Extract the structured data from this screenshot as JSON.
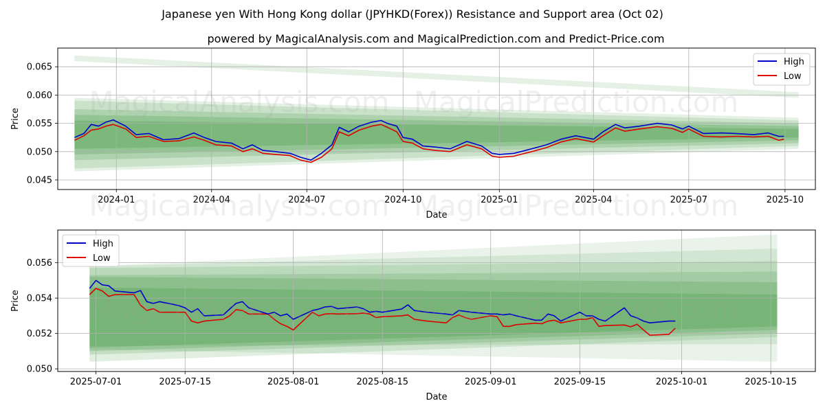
{
  "title": "Japanese yen With Hong Kong dollar (JPYHKD(Forex)) Resistance and Support area (Oct 02)",
  "subtitle": "powered by MagicalAnalysis.com and MagicalPrediction.com and Predict-Price.com",
  "watermarks": [
    "MagicalAnalysis.com",
    "MagicalPrediction.com"
  ],
  "colors": {
    "high": "#0000cc",
    "low": "#dd0000",
    "band": "#2e8b2e"
  },
  "chart_data": [
    {
      "type": "line",
      "xlabel": "Date",
      "ylabel": "Price",
      "legend_position": "top-right",
      "grid": true,
      "xlim": [
        "2023-11-06",
        "2025-10-30"
      ],
      "ylim": [
        0.0433,
        0.0683
      ],
      "x_ticks": [
        "2024-01",
        "2024-04",
        "2024-07",
        "2024-10",
        "2025-01",
        "2025-04",
        "2025-07",
        "2025-10"
      ],
      "x_tick_dates": [
        "2024-01-01",
        "2024-04-01",
        "2024-07-01",
        "2024-10-01",
        "2025-01-01",
        "2025-04-01",
        "2025-07-01",
        "2025-10-01"
      ],
      "y_ticks": [
        "0.045",
        "0.050",
        "0.055",
        "0.060",
        "0.065"
      ],
      "y_tick_values": [
        0.045,
        0.05,
        0.055,
        0.06,
        0.065
      ],
      "bands": [
        {
          "x": [
            "2023-11-22",
            "2025-10-14"
          ],
          "upper": [
            0.067,
            0.0605
          ],
          "lower": [
            0.066,
            0.0595
          ],
          "opacity": 0.12
        },
        {
          "x": [
            "2023-11-22",
            "2025-10-14"
          ],
          "upper": [
            0.0595,
            0.056
          ],
          "lower": [
            0.0465,
            0.0505
          ],
          "opacity": 0.12
        },
        {
          "x": [
            "2023-11-22",
            "2025-10-14"
          ],
          "upper": [
            0.059,
            0.0555
          ],
          "lower": [
            0.047,
            0.051
          ],
          "opacity": 0.15
        },
        {
          "x": [
            "2023-11-22",
            "2025-10-14"
          ],
          "upper": [
            0.0575,
            0.055
          ],
          "lower": [
            0.0485,
            0.0515
          ],
          "opacity": 0.18
        },
        {
          "x": [
            "2023-11-22",
            "2025-10-14"
          ],
          "upper": [
            0.0565,
            0.0545
          ],
          "lower": [
            0.0495,
            0.052
          ],
          "opacity": 0.2
        },
        {
          "x": [
            "2023-11-22",
            "2025-10-14"
          ],
          "upper": [
            0.0555,
            0.054
          ],
          "lower": [
            0.0505,
            0.0525
          ],
          "opacity": 0.22
        }
      ],
      "series": [
        {
          "name": "High",
          "color": "#0000cc",
          "x": [
            "2023-11-22",
            "2023-12-01",
            "2023-12-08",
            "2023-12-15",
            "2023-12-22",
            "2023-12-29",
            "2024-01-10",
            "2024-01-20",
            "2024-02-01",
            "2024-02-15",
            "2024-03-01",
            "2024-03-15",
            "2024-03-25",
            "2024-04-05",
            "2024-04-20",
            "2024-05-01",
            "2024-05-10",
            "2024-05-20",
            "2024-06-01",
            "2024-06-15",
            "2024-06-25",
            "2024-07-05",
            "2024-07-15",
            "2024-07-25",
            "2024-08-01",
            "2024-08-10",
            "2024-08-20",
            "2024-09-01",
            "2024-09-10",
            "2024-09-16",
            "2024-09-25",
            "2024-10-01",
            "2024-10-10",
            "2024-10-20",
            "2024-11-01",
            "2024-11-15",
            "2024-12-01",
            "2024-12-15",
            "2024-12-25",
            "2025-01-01",
            "2025-01-15",
            "2025-02-01",
            "2025-02-15",
            "2025-03-01",
            "2025-03-15",
            "2025-04-01",
            "2025-04-10",
            "2025-04-22",
            "2025-05-01",
            "2025-05-15",
            "2025-06-01",
            "2025-06-15",
            "2025-06-25",
            "2025-07-01",
            "2025-07-15",
            "2025-08-01",
            "2025-08-15",
            "2025-09-01",
            "2025-09-15",
            "2025-09-25",
            "2025-09-30"
          ],
          "y": [
            0.0525,
            0.0532,
            0.0548,
            0.0545,
            0.0552,
            0.0556,
            0.0545,
            0.053,
            0.0532,
            0.0521,
            0.0523,
            0.0533,
            0.0525,
            0.0518,
            0.0515,
            0.0505,
            0.0512,
            0.0502,
            0.05,
            0.0497,
            0.049,
            0.0485,
            0.0497,
            0.0512,
            0.0543,
            0.0535,
            0.0545,
            0.0552,
            0.0555,
            0.055,
            0.0545,
            0.0525,
            0.0522,
            0.051,
            0.0508,
            0.0505,
            0.0518,
            0.051,
            0.0497,
            0.0495,
            0.0497,
            0.0505,
            0.0512,
            0.0522,
            0.0528,
            0.0522,
            0.0535,
            0.0548,
            0.0542,
            0.0545,
            0.055,
            0.0547,
            0.054,
            0.0545,
            0.0532,
            0.0533,
            0.0532,
            0.053,
            0.0533,
            0.0527,
            0.0527
          ]
        },
        {
          "name": "Low",
          "color": "#dd0000",
          "x": [
            "2023-11-22",
            "2023-12-01",
            "2023-12-08",
            "2023-12-15",
            "2023-12-22",
            "2023-12-29",
            "2024-01-10",
            "2024-01-20",
            "2024-02-01",
            "2024-02-15",
            "2024-03-01",
            "2024-03-15",
            "2024-03-25",
            "2024-04-05",
            "2024-04-20",
            "2024-05-01",
            "2024-05-10",
            "2024-05-20",
            "2024-06-01",
            "2024-06-15",
            "2024-06-25",
            "2024-07-05",
            "2024-07-15",
            "2024-07-25",
            "2024-08-01",
            "2024-08-10",
            "2024-08-20",
            "2024-09-01",
            "2024-09-10",
            "2024-09-16",
            "2024-09-25",
            "2024-10-01",
            "2024-10-10",
            "2024-10-20",
            "2024-11-01",
            "2024-11-15",
            "2024-12-01",
            "2024-12-15",
            "2024-12-25",
            "2025-01-01",
            "2025-01-15",
            "2025-02-01",
            "2025-02-15",
            "2025-03-01",
            "2025-03-15",
            "2025-04-01",
            "2025-04-10",
            "2025-04-22",
            "2025-05-01",
            "2025-05-15",
            "2025-06-01",
            "2025-06-15",
            "2025-06-25",
            "2025-07-01",
            "2025-07-15",
            "2025-08-01",
            "2025-08-15",
            "2025-09-01",
            "2025-09-15",
            "2025-09-25",
            "2025-09-30"
          ],
          "y": [
            0.052,
            0.0528,
            0.0538,
            0.054,
            0.0545,
            0.0548,
            0.054,
            0.0525,
            0.0527,
            0.0518,
            0.0519,
            0.0526,
            0.052,
            0.0512,
            0.051,
            0.05,
            0.0505,
            0.0497,
            0.0495,
            0.0493,
            0.0485,
            0.0481,
            0.049,
            0.0505,
            0.0535,
            0.0528,
            0.0538,
            0.0545,
            0.0548,
            0.0543,
            0.0535,
            0.0518,
            0.0515,
            0.0505,
            0.0502,
            0.05,
            0.0512,
            0.0505,
            0.0492,
            0.049,
            0.0492,
            0.05,
            0.0507,
            0.0517,
            0.0523,
            0.0517,
            0.0528,
            0.0542,
            0.0536,
            0.054,
            0.0544,
            0.0541,
            0.0534,
            0.054,
            0.0527,
            0.0526,
            0.0527,
            0.0526,
            0.0527,
            0.052,
            0.0522
          ]
        }
      ]
    },
    {
      "type": "line",
      "xlabel": "Date",
      "ylabel": "Price",
      "legend_position": "top-left",
      "grid": true,
      "xlim": [
        "2025-06-25",
        "2025-10-22"
      ],
      "ylim": [
        0.04985,
        0.05785
      ],
      "x_ticks": [
        "2025-07-01",
        "2025-07-15",
        "2025-08-01",
        "2025-08-15",
        "2025-09-01",
        "2025-09-15",
        "2025-10-01",
        "2025-10-15"
      ],
      "x_tick_dates": [
        "2025-07-01",
        "2025-07-15",
        "2025-08-01",
        "2025-08-15",
        "2025-09-01",
        "2025-09-15",
        "2025-10-01",
        "2025-10-15"
      ],
      "y_ticks": [
        "0.050",
        "0.052",
        "0.054",
        "0.056"
      ],
      "y_tick_values": [
        0.05,
        0.052,
        0.054,
        0.056
      ],
      "bands": [
        {
          "x": [
            "2025-06-30",
            "2025-10-16"
          ],
          "upper": [
            0.0558,
            0.0576
          ],
          "lower": [
            0.0511,
            0.0504
          ],
          "opacity": 0.1
        },
        {
          "x": [
            "2025-06-30",
            "2025-10-16"
          ],
          "upper": [
            0.0558,
            0.0568
          ],
          "lower": [
            0.0513,
            0.0514
          ],
          "opacity": 0.12
        },
        {
          "x": [
            "2025-06-30",
            "2025-10-16"
          ],
          "upper": [
            0.0557,
            0.0561
          ],
          "lower": [
            0.0504,
            0.0518
          ],
          "opacity": 0.14
        },
        {
          "x": [
            "2025-06-30",
            "2025-10-16"
          ],
          "upper": [
            0.0553,
            0.0555
          ],
          "lower": [
            0.0508,
            0.052
          ],
          "opacity": 0.16
        },
        {
          "x": [
            "2025-06-30",
            "2025-10-16"
          ],
          "upper": [
            0.0552,
            0.0549
          ],
          "lower": [
            0.051,
            0.0522
          ],
          "opacity": 0.2
        },
        {
          "x": [
            "2025-06-30",
            "2025-10-16"
          ],
          "upper": [
            0.0546,
            0.0542
          ],
          "lower": [
            0.0512,
            0.0524
          ],
          "opacity": 0.22
        }
      ],
      "series": [
        {
          "name": "High",
          "color": "#0000cc",
          "x": [
            "2025-06-30",
            "2025-07-01",
            "2025-07-02",
            "2025-07-03",
            "2025-07-04",
            "2025-07-07",
            "2025-07-08",
            "2025-07-09",
            "2025-07-10",
            "2025-07-11",
            "2025-07-14",
            "2025-07-15",
            "2025-07-16",
            "2025-07-17",
            "2025-07-18",
            "2025-07-21",
            "2025-07-22",
            "2025-07-23",
            "2025-07-24",
            "2025-07-25",
            "2025-07-28",
            "2025-07-29",
            "2025-07-30",
            "2025-07-31",
            "2025-08-01",
            "2025-08-04",
            "2025-08-05",
            "2025-08-06",
            "2025-08-07",
            "2025-08-08",
            "2025-08-11",
            "2025-08-12",
            "2025-08-13",
            "2025-08-14",
            "2025-08-15",
            "2025-08-18",
            "2025-08-19",
            "2025-08-20",
            "2025-08-21",
            "2025-08-22",
            "2025-08-25",
            "2025-08-26",
            "2025-08-27",
            "2025-08-28",
            "2025-08-29",
            "2025-09-01",
            "2025-09-02",
            "2025-09-03",
            "2025-09-04",
            "2025-09-05",
            "2025-09-08",
            "2025-09-09",
            "2025-09-10",
            "2025-09-11",
            "2025-09-12",
            "2025-09-15",
            "2025-09-16",
            "2025-09-17",
            "2025-09-18",
            "2025-09-19",
            "2025-09-22",
            "2025-09-23",
            "2025-09-24",
            "2025-09-25",
            "2025-09-26",
            "2025-09-29",
            "2025-09-30"
          ],
          "y": [
            0.05455,
            0.055,
            0.05475,
            0.0547,
            0.0544,
            0.0543,
            0.05443,
            0.0538,
            0.0537,
            0.0538,
            0.05358,
            0.05345,
            0.0532,
            0.0534,
            0.053,
            0.05305,
            0.05338,
            0.0537,
            0.0538,
            0.05345,
            0.0531,
            0.0532,
            0.053,
            0.0531,
            0.0528,
            0.0533,
            0.05338,
            0.0535,
            0.05353,
            0.0534,
            0.0535,
            0.0534,
            0.0532,
            0.05325,
            0.0532,
            0.05338,
            0.05362,
            0.0533,
            0.05325,
            0.0532,
            0.0531,
            0.05305,
            0.0533,
            0.05325,
            0.0532,
            0.0531,
            0.0531,
            0.05305,
            0.0531,
            0.053,
            0.05275,
            0.05275,
            0.0531,
            0.053,
            0.0527,
            0.0532,
            0.053,
            0.053,
            0.0528,
            0.0527,
            0.05345,
            0.053,
            0.05288,
            0.0527,
            0.0526,
            0.0527,
            0.0527
          ]
        },
        {
          "name": "Low",
          "color": "#dd0000",
          "x": [
            "2025-06-30",
            "2025-07-01",
            "2025-07-02",
            "2025-07-03",
            "2025-07-04",
            "2025-07-07",
            "2025-07-08",
            "2025-07-09",
            "2025-07-10",
            "2025-07-11",
            "2025-07-14",
            "2025-07-15",
            "2025-07-16",
            "2025-07-17",
            "2025-07-18",
            "2025-07-21",
            "2025-07-22",
            "2025-07-23",
            "2025-07-24",
            "2025-07-25",
            "2025-07-28",
            "2025-07-29",
            "2025-07-30",
            "2025-07-31",
            "2025-08-01",
            "2025-08-04",
            "2025-08-05",
            "2025-08-06",
            "2025-08-07",
            "2025-08-08",
            "2025-08-11",
            "2025-08-12",
            "2025-08-13",
            "2025-08-14",
            "2025-08-15",
            "2025-08-18",
            "2025-08-19",
            "2025-08-20",
            "2025-08-21",
            "2025-08-22",
            "2025-08-25",
            "2025-08-26",
            "2025-08-27",
            "2025-08-28",
            "2025-08-29",
            "2025-09-01",
            "2025-09-02",
            "2025-09-03",
            "2025-09-04",
            "2025-09-05",
            "2025-09-08",
            "2025-09-09",
            "2025-09-10",
            "2025-09-11",
            "2025-09-12",
            "2025-09-15",
            "2025-09-16",
            "2025-09-17",
            "2025-09-18",
            "2025-09-19",
            "2025-09-22",
            "2025-09-23",
            "2025-09-24",
            "2025-09-25",
            "2025-09-26",
            "2025-09-29",
            "2025-09-30"
          ],
          "y": [
            0.0542,
            0.05455,
            0.0544,
            0.0541,
            0.0542,
            0.0542,
            0.0536,
            0.0533,
            0.0534,
            0.0532,
            0.0532,
            0.0532,
            0.0527,
            0.0526,
            0.0527,
            0.0528,
            0.053,
            0.05335,
            0.0533,
            0.0531,
            0.0531,
            0.0528,
            0.05255,
            0.0524,
            0.0522,
            0.0532,
            0.053,
            0.0531,
            0.05312,
            0.0531,
            0.05312,
            0.05315,
            0.0531,
            0.0529,
            0.05295,
            0.053,
            0.05305,
            0.0528,
            0.05275,
            0.0527,
            0.0526,
            0.0529,
            0.05305,
            0.0529,
            0.0528,
            0.053,
            0.05295,
            0.0524,
            0.0524,
            0.0525,
            0.05258,
            0.05255,
            0.0527,
            0.05275,
            0.0526,
            0.0528,
            0.0528,
            0.0529,
            0.0524,
            0.05245,
            0.05248,
            0.05238,
            0.05252,
            0.0522,
            0.0519,
            0.05195,
            0.0523
          ]
        }
      ]
    }
  ]
}
